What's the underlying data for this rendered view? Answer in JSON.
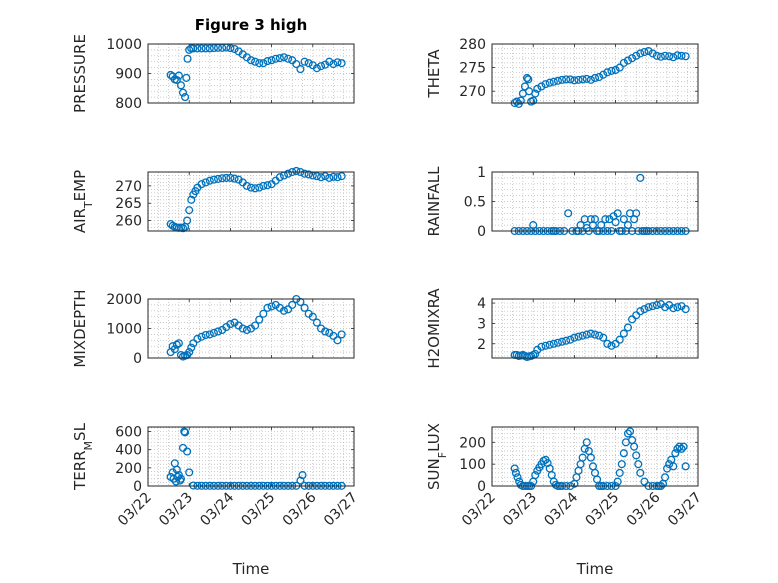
{
  "chart_data": {
    "title": "Figure 3 high",
    "type": "scatter",
    "marker": "circle",
    "marker_color": "#0072BD",
    "x_tick_labels": [
      "03/22",
      "03/23",
      "03/24",
      "03/25",
      "03/26",
      "03/27"
    ],
    "xlabel": "Time",
    "panels": [
      {
        "id": "pressure",
        "ylabel": "PRESSURE",
        "ylim": [
          800,
          1000
        ],
        "yticks": [
          800,
          900,
          1000
        ],
        "x": [
          0.55,
          0.6,
          0.65,
          0.7,
          0.75,
          0.8,
          0.85,
          0.9,
          0.93,
          0.96,
          1.0,
          1.05,
          1.1,
          1.2,
          1.3,
          1.4,
          1.5,
          1.6,
          1.7,
          1.8,
          1.9,
          2.0,
          2.1,
          2.2,
          2.3,
          2.4,
          2.5,
          2.6,
          2.7,
          2.8,
          2.9,
          3.0,
          3.1,
          3.2,
          3.3,
          3.4,
          3.5,
          3.6,
          3.7,
          3.8,
          3.9,
          4.0,
          4.1,
          4.2,
          4.3,
          4.4,
          4.5,
          4.6,
          4.7
        ],
        "y": [
          895,
          890,
          880,
          878,
          893,
          860,
          835,
          820,
          885,
          950,
          980,
          985,
          985,
          985,
          985,
          985,
          985,
          986,
          987,
          987,
          988,
          986,
          983,
          975,
          965,
          955,
          945,
          940,
          935,
          935,
          942,
          945,
          950,
          952,
          955,
          950,
          945,
          932,
          915,
          940,
          935,
          928,
          918,
          925,
          930,
          940,
          932,
          938,
          935
        ]
      },
      {
        "id": "theta",
        "ylabel": "THETA",
        "ylim": [
          267.5,
          280
        ],
        "yticks": [
          270,
          275,
          280
        ],
        "x": [
          0.55,
          0.6,
          0.65,
          0.7,
          0.75,
          0.8,
          0.85,
          0.88,
          0.9,
          0.95,
          1.0,
          1.05,
          1.1,
          1.2,
          1.3,
          1.4,
          1.5,
          1.6,
          1.7,
          1.8,
          1.9,
          2.0,
          2.1,
          2.2,
          2.3,
          2.4,
          2.5,
          2.6,
          2.7,
          2.8,
          2.9,
          3.0,
          3.1,
          3.2,
          3.3,
          3.4,
          3.5,
          3.6,
          3.7,
          3.8,
          3.9,
          4.0,
          4.1,
          4.2,
          4.3,
          4.4,
          4.5,
          4.6,
          4.7
        ],
        "y": [
          267.5,
          267.8,
          267.3,
          268.0,
          269.5,
          271.0,
          272.8,
          272.5,
          270.0,
          267.8,
          268.0,
          269.5,
          270.5,
          271.0,
          271.5,
          271.8,
          272.0,
          272.2,
          272.4,
          272.5,
          272.5,
          272.3,
          272.4,
          272.5,
          272.6,
          272.4,
          272.8,
          273.0,
          273.5,
          274.0,
          274.3,
          274.5,
          275.0,
          276.0,
          276.5,
          277.0,
          277.5,
          278.0,
          278.3,
          278.5,
          278.0,
          277.5,
          277.3,
          277.5,
          277.4,
          277.2,
          277.6,
          277.5,
          277.4
        ]
      },
      {
        "id": "air-temp",
        "ylabel": "AIR_TEMP",
        "ylabel_main": "AIR",
        "ylabel_sub": "T",
        "ylabel_rest": "EMP",
        "ylim": [
          257,
          274
        ],
        "yticks": [
          260,
          265,
          270
        ],
        "x": [
          0.55,
          0.6,
          0.65,
          0.7,
          0.75,
          0.8,
          0.85,
          0.9,
          0.95,
          1.0,
          1.05,
          1.1,
          1.15,
          1.2,
          1.3,
          1.4,
          1.5,
          1.6,
          1.7,
          1.8,
          1.9,
          2.0,
          2.1,
          2.2,
          2.3,
          2.4,
          2.5,
          2.6,
          2.7,
          2.8,
          2.9,
          3.0,
          3.1,
          3.2,
          3.3,
          3.4,
          3.5,
          3.6,
          3.7,
          3.8,
          3.9,
          4.0,
          4.1,
          4.2,
          4.3,
          4.4,
          4.5,
          4.6,
          4.7
        ],
        "y": [
          259.0,
          258.5,
          258.2,
          258.0,
          257.9,
          258.0,
          257.8,
          258.2,
          260.0,
          263.0,
          266.0,
          267.5,
          268.5,
          269.5,
          270.5,
          271.0,
          271.5,
          271.8,
          272.0,
          272.2,
          272.3,
          272.3,
          272.1,
          271.8,
          271.0,
          270.0,
          269.5,
          269.3,
          269.5,
          270.0,
          270.2,
          270.5,
          271.5,
          272.5,
          273.0,
          273.5,
          274.0,
          274.3,
          274.0,
          273.5,
          273.3,
          273.0,
          272.8,
          272.5,
          272.8,
          272.3,
          272.6,
          272.5,
          272.8
        ]
      },
      {
        "id": "rainfall",
        "ylabel": "RAINFALL",
        "ylim": [
          0,
          1
        ],
        "yticks": [
          0,
          0.5,
          1
        ],
        "ytick_labels": [
          "0",
          "0.5",
          "1"
        ],
        "x": [
          0.55,
          0.65,
          0.75,
          0.85,
          0.95,
          1.0,
          1.05,
          1.15,
          1.25,
          1.35,
          1.45,
          1.5,
          1.55,
          1.65,
          1.75,
          1.85,
          1.95,
          2.05,
          2.1,
          2.15,
          2.2,
          2.25,
          2.3,
          2.35,
          2.4,
          2.45,
          2.5,
          2.55,
          2.6,
          2.65,
          2.7,
          2.75,
          2.8,
          2.85,
          2.9,
          2.95,
          3.0,
          3.05,
          3.1,
          3.15,
          3.2,
          3.25,
          3.3,
          3.35,
          3.4,
          3.45,
          3.5,
          3.55,
          3.6,
          3.65,
          3.7,
          3.75,
          3.8,
          3.9,
          4.0,
          4.1,
          4.2,
          4.3,
          4.4,
          4.5,
          4.6,
          4.7
        ],
        "y": [
          0,
          0,
          0,
          0,
          0,
          0.1,
          0,
          0,
          0,
          0,
          0,
          0,
          0,
          0,
          0,
          0.3,
          0,
          0,
          0,
          0.1,
          0,
          0.2,
          0.05,
          0,
          0.2,
          0.1,
          0.2,
          0,
          0,
          0.1,
          0,
          0.2,
          0,
          0.2,
          0,
          0.25,
          0.15,
          0.3,
          0,
          0,
          0.2,
          0,
          0.1,
          0.3,
          0,
          0.2,
          0.3,
          0,
          0.9,
          0,
          0,
          0,
          0,
          0,
          0,
          0,
          0,
          0,
          0,
          0,
          0,
          0
        ]
      },
      {
        "id": "mixdepth",
        "ylabel": "MIXDEPTH",
        "ylim": [
          0,
          2000
        ],
        "yticks": [
          0,
          1000,
          2000
        ],
        "x": [
          0.55,
          0.6,
          0.65,
          0.7,
          0.75,
          0.8,
          0.85,
          0.9,
          0.95,
          1.0,
          1.05,
          1.1,
          1.2,
          1.3,
          1.4,
          1.5,
          1.6,
          1.7,
          1.8,
          1.9,
          2.0,
          2.1,
          2.2,
          2.3,
          2.4,
          2.5,
          2.6,
          2.7,
          2.8,
          2.9,
          3.0,
          3.1,
          3.2,
          3.3,
          3.4,
          3.5,
          3.6,
          3.7,
          3.8,
          3.9,
          4.0,
          4.1,
          4.2,
          4.3,
          4.4,
          4.5,
          4.6,
          4.7
        ],
        "y": [
          200,
          400,
          300,
          450,
          500,
          100,
          50,
          80,
          100,
          200,
          350,
          500,
          650,
          720,
          780,
          800,
          850,
          900,
          950,
          1050,
          1150,
          1200,
          1100,
          1000,
          950,
          1000,
          1100,
          1300,
          1500,
          1700,
          1750,
          1800,
          1700,
          1600,
          1650,
          1800,
          2000,
          1900,
          1700,
          1500,
          1400,
          1200,
          1000,
          900,
          850,
          750,
          600,
          800
        ]
      },
      {
        "id": "h2omixra",
        "ylabel": "H2OMIXRA",
        "ylim": [
          1.3,
          4.2
        ],
        "yticks": [
          2,
          3,
          4
        ],
        "x": [
          0.55,
          0.6,
          0.65,
          0.7,
          0.75,
          0.8,
          0.85,
          0.9,
          0.95,
          1.0,
          1.05,
          1.1,
          1.2,
          1.3,
          1.4,
          1.5,
          1.6,
          1.7,
          1.8,
          1.9,
          2.0,
          2.1,
          2.2,
          2.3,
          2.4,
          2.5,
          2.6,
          2.7,
          2.8,
          2.9,
          3.0,
          3.1,
          3.2,
          3.3,
          3.4,
          3.5,
          3.6,
          3.7,
          3.8,
          3.9,
          4.0,
          4.1,
          4.2,
          4.3,
          4.4,
          4.5,
          4.6,
          4.7
        ],
        "y": [
          1.45,
          1.45,
          1.4,
          1.42,
          1.45,
          1.4,
          1.35,
          1.38,
          1.4,
          1.45,
          1.5,
          1.7,
          1.85,
          1.9,
          1.95,
          2.0,
          2.05,
          2.1,
          2.15,
          2.2,
          2.3,
          2.35,
          2.4,
          2.45,
          2.5,
          2.45,
          2.4,
          2.3,
          2.0,
          1.9,
          2.0,
          2.2,
          2.5,
          2.8,
          3.2,
          3.4,
          3.6,
          3.7,
          3.8,
          3.85,
          3.9,
          3.95,
          3.8,
          3.9,
          3.75,
          3.8,
          3.85,
          3.7
        ]
      },
      {
        "id": "terr-msl",
        "ylabel": "TERR_MSL",
        "ylabel_main": "TERR",
        "ylabel_sub": "M",
        "ylabel_rest": "SL",
        "ylim": [
          0,
          650
        ],
        "yticks": [
          0,
          200,
          400,
          600
        ],
        "x": [
          0.55,
          0.6,
          0.62,
          0.65,
          0.68,
          0.7,
          0.72,
          0.75,
          0.78,
          0.8,
          0.85,
          0.88,
          0.9,
          0.95,
          1.0,
          1.1,
          1.2,
          1.3,
          1.4,
          1.5,
          1.6,
          1.7,
          1.8,
          1.9,
          2.0,
          2.1,
          2.2,
          2.3,
          2.4,
          2.5,
          2.6,
          2.7,
          2.8,
          2.9,
          3.0,
          3.1,
          3.2,
          3.3,
          3.4,
          3.5,
          3.6,
          3.7,
          3.75,
          3.8,
          3.9,
          4.0,
          4.1,
          4.2,
          4.3,
          4.4,
          4.5,
          4.6,
          4.7
        ],
        "y": [
          100,
          150,
          80,
          250,
          50,
          180,
          100,
          120,
          60,
          80,
          420,
          600,
          590,
          380,
          150,
          5,
          2,
          2,
          2,
          2,
          2,
          2,
          2,
          2,
          2,
          2,
          2,
          2,
          2,
          2,
          2,
          2,
          2,
          2,
          2,
          2,
          2,
          2,
          2,
          2,
          2,
          60,
          120,
          2,
          2,
          2,
          2,
          2,
          2,
          2,
          2,
          2,
          2
        ]
      },
      {
        "id": "sun-flux",
        "ylabel": "SUN_FLUX",
        "ylabel_main": "SUN",
        "ylabel_sub": "F",
        "ylabel_rest": "LUX",
        "ylim": [
          0,
          270
        ],
        "yticks": [
          0,
          100,
          200
        ],
        "x": [
          0.55,
          0.58,
          0.62,
          0.66,
          0.7,
          0.75,
          0.8,
          0.85,
          0.9,
          0.95,
          1.0,
          1.05,
          1.1,
          1.15,
          1.2,
          1.25,
          1.3,
          1.35,
          1.4,
          1.45,
          1.5,
          1.55,
          1.6,
          1.65,
          1.7,
          1.8,
          1.9,
          2.0,
          2.05,
          2.1,
          2.15,
          2.2,
          2.25,
          2.3,
          2.35,
          2.4,
          2.45,
          2.5,
          2.55,
          2.6,
          2.65,
          2.7,
          2.8,
          2.9,
          3.0,
          3.05,
          3.1,
          3.15,
          3.2,
          3.25,
          3.3,
          3.35,
          3.4,
          3.45,
          3.5,
          3.55,
          3.6,
          3.7,
          3.8,
          3.9,
          4.0,
          4.05,
          4.1,
          4.15,
          4.2,
          4.25,
          4.3,
          4.35,
          4.4,
          4.45,
          4.5,
          4.55,
          4.6,
          4.65,
          4.7
        ],
        "y": [
          80,
          60,
          40,
          20,
          5,
          0,
          0,
          0,
          0,
          0,
          20,
          50,
          70,
          85,
          100,
          115,
          120,
          105,
          80,
          50,
          20,
          5,
          0,
          0,
          0,
          0,
          0,
          10,
          40,
          70,
          100,
          130,
          170,
          200,
          160,
          130,
          90,
          60,
          30,
          0,
          0,
          0,
          0,
          0,
          0,
          20,
          60,
          100,
          150,
          200,
          240,
          250,
          210,
          180,
          140,
          100,
          60,
          20,
          0,
          0,
          0,
          0,
          0,
          10,
          40,
          80,
          100,
          120,
          90,
          150,
          170,
          180,
          170,
          180,
          90
        ]
      }
    ]
  }
}
